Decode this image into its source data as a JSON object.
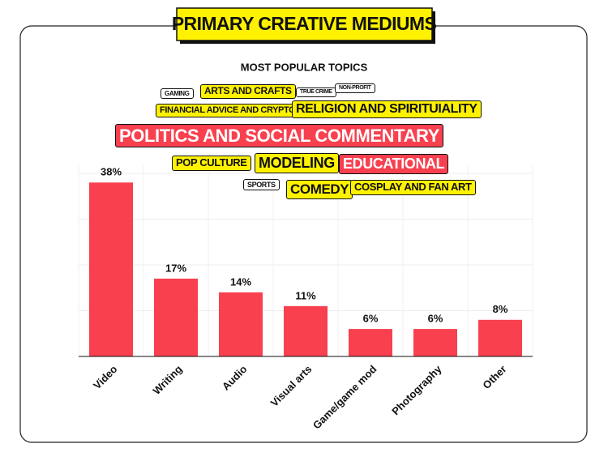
{
  "chart_data": {
    "type": "bar",
    "title": "PRIMARY CREATIVE MEDIUMS",
    "subtitle": "MOST POPULAR TOPICS",
    "categories": [
      "Video",
      "Writing",
      "Audio",
      "Visual arts",
      "Game/game mod",
      "Photography",
      "Other"
    ],
    "values": [
      38,
      17,
      14,
      11,
      6,
      6,
      8
    ],
    "value_labels": [
      "38%",
      "17%",
      "14%",
      "11%",
      "6%",
      "6%",
      "8%"
    ],
    "color": "#f8404f",
    "ylim": [
      0,
      40
    ],
    "grid": true,
    "tags": [
      {
        "text": "GAMING",
        "color": "#ffffff",
        "text_color": "#111111"
      },
      {
        "text": "ARTS AND CRAFTS",
        "color": "#fff200",
        "text_color": "#111111"
      },
      {
        "text": "TRUE CRIME",
        "color": "#ffffff",
        "text_color": "#111111"
      },
      {
        "text": "NON-PROFIT",
        "color": "#ffffff",
        "text_color": "#111111"
      },
      {
        "text": "FINANCIAL ADVICE AND CRYPTO",
        "color": "#fff200",
        "text_color": "#111111"
      },
      {
        "text": "RELIGION AND SPIRITUIALITY",
        "color": "#fff200",
        "text_color": "#111111"
      },
      {
        "text": "POLITICS AND SOCIAL COMMENTARY",
        "color": "#f8404f",
        "text_color": "#ffffff"
      },
      {
        "text": "POP CULTURE",
        "color": "#fff200",
        "text_color": "#111111"
      },
      {
        "text": "MODELING",
        "color": "#fff200",
        "text_color": "#111111"
      },
      {
        "text": "EDUCATIONAL",
        "color": "#f8404f",
        "text_color": "#ffffff"
      },
      {
        "text": "SPORTS",
        "color": "#ffffff",
        "text_color": "#111111"
      },
      {
        "text": "COMEDY",
        "color": "#fff200",
        "text_color": "#111111"
      },
      {
        "text": "COSPLAY AND FAN ART",
        "color": "#fff200",
        "text_color": "#111111"
      }
    ]
  }
}
